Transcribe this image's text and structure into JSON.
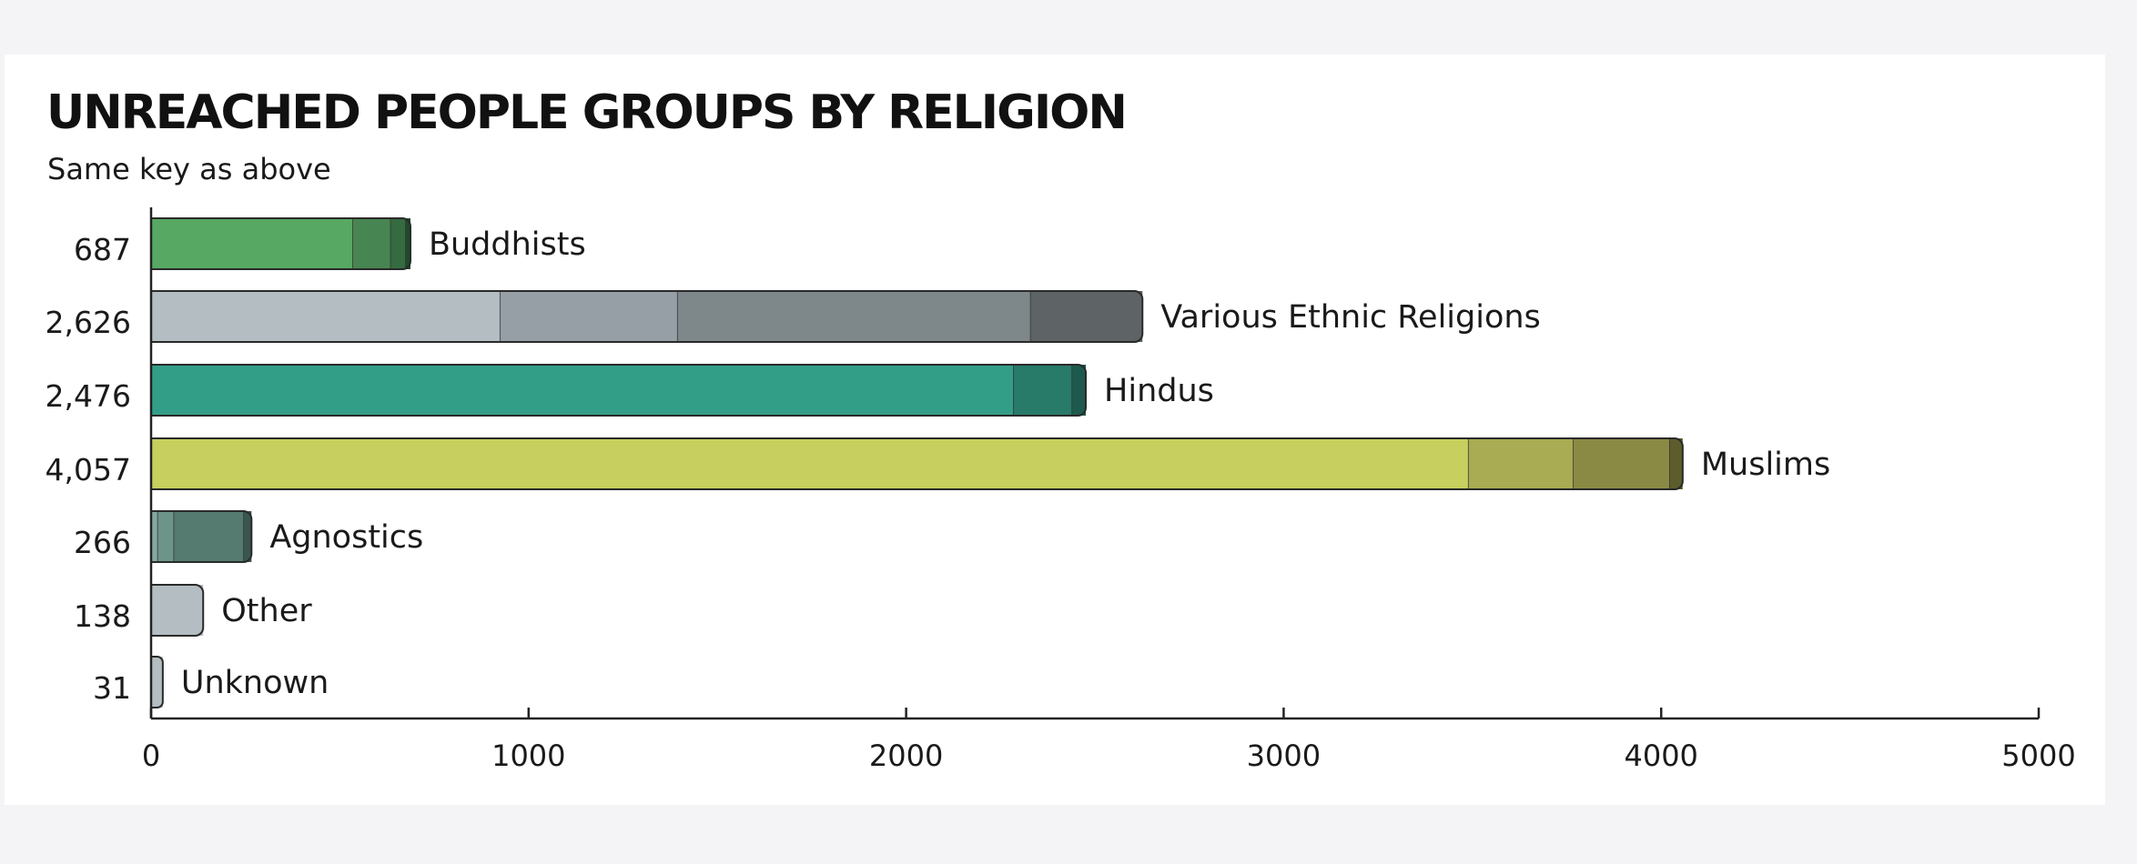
{
  "chart_data": {
    "type": "bar",
    "orientation": "horizontal",
    "stacked": true,
    "title": "UNREACHED PEOPLE GROUPS BY RELIGION",
    "subtitle": "Same key as above",
    "xlabel": "",
    "ylabel": "",
    "xlim": [
      0,
      5000
    ],
    "xticks": [
      0,
      1000,
      2000,
      3000,
      4000,
      5000
    ],
    "grid": false,
    "bars": [
      {
        "category": "Buddhists",
        "total_label": "687",
        "segments": [
          {
            "value": 535,
            "color": "#57a862"
          },
          {
            "value": 100,
            "color": "#478552"
          },
          {
            "value": 40,
            "color": "#356b40"
          },
          {
            "value": 12,
            "color": "#1f4a28"
          }
        ]
      },
      {
        "category": "Various Ethnic Religions",
        "total_label": "2,626",
        "segments": [
          {
            "value": 925,
            "color": "#b3bdc2"
          },
          {
            "value": 470,
            "color": "#959fa5"
          },
          {
            "value": 935,
            "color": "#7e878a"
          },
          {
            "value": 296,
            "color": "#5e6366"
          }
        ]
      },
      {
        "category": "Hindus",
        "total_label": "2,476",
        "segments": [
          {
            "value": 2285,
            "color": "#339e88"
          },
          {
            "value": 155,
            "color": "#287a69"
          },
          {
            "value": 36,
            "color": "#1d5a4d"
          }
        ]
      },
      {
        "category": "Muslims",
        "total_label": "4,057",
        "segments": [
          {
            "value": 3490,
            "color": "#c7cf5e"
          },
          {
            "value": 278,
            "color": "#a9ac52"
          },
          {
            "value": 255,
            "color": "#8b8a44"
          },
          {
            "value": 34,
            "color": "#5d5c2c"
          }
        ]
      },
      {
        "category": "Agnostics",
        "total_label": "266",
        "segments": [
          {
            "value": 18,
            "color": "#83aaa0"
          },
          {
            "value": 43,
            "color": "#6d9489"
          },
          {
            "value": 185,
            "color": "#557a70"
          },
          {
            "value": 20,
            "color": "#3a5650"
          }
        ]
      },
      {
        "category": "Other",
        "total_label": "138",
        "segments": [
          {
            "value": 138,
            "color": "#b3bdc2"
          }
        ]
      },
      {
        "category": "Unknown",
        "total_label": "31",
        "segments": [
          {
            "value": 31,
            "color": "#b3bdc2"
          }
        ]
      }
    ]
  }
}
